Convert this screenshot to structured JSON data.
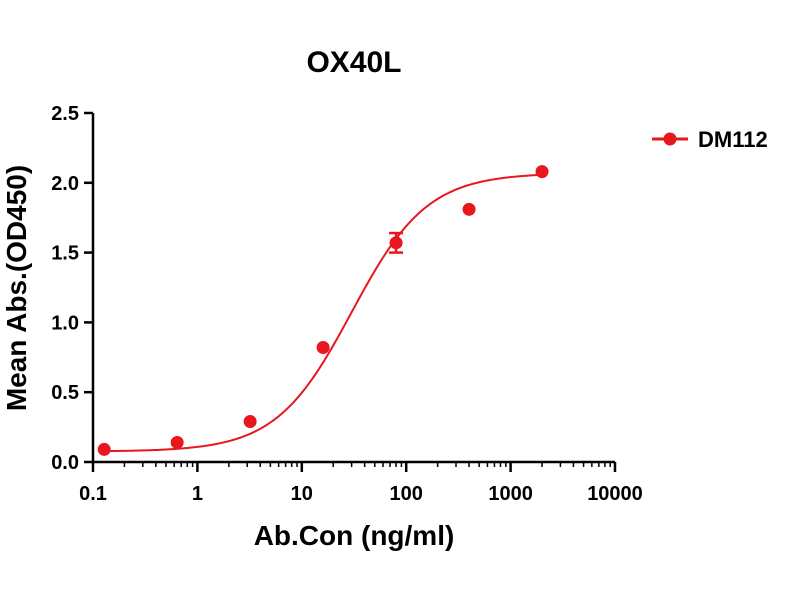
{
  "chart_data": {
    "type": "scatter",
    "title": "OX40L",
    "xlabel": "Ab.Con (ng/ml)",
    "ylabel": "Mean Abs.(OD450)",
    "xscale": "log",
    "xlim": [
      0.1,
      10000
    ],
    "ylim": [
      0,
      2.5
    ],
    "xticks": [
      "0.1",
      "1",
      "10",
      "100",
      "1000",
      "10000"
    ],
    "xtick_values": [
      0.1,
      1,
      10,
      100,
      1000,
      10000
    ],
    "yticks": [
      "0.0",
      "0.5",
      "1.0",
      "1.5",
      "2.0",
      "2.5"
    ],
    "ytick_values": [
      0,
      0.5,
      1.0,
      1.5,
      2.0,
      2.5
    ],
    "grid": false,
    "legend_position": "top-right",
    "series": [
      {
        "name": "DM112",
        "color": "#e8161d",
        "marker": "circle",
        "fit": "4PL sigmoid",
        "points": [
          {
            "x": 0.128,
            "y": 0.09
          },
          {
            "x": 0.64,
            "y": 0.14
          },
          {
            "x": 3.2,
            "y": 0.29
          },
          {
            "x": 16,
            "y": 0.82
          },
          {
            "x": 80,
            "y": 1.57,
            "err": 0.07
          },
          {
            "x": 400,
            "y": 1.81
          },
          {
            "x": 2000,
            "y": 2.08
          }
        ]
      }
    ]
  }
}
